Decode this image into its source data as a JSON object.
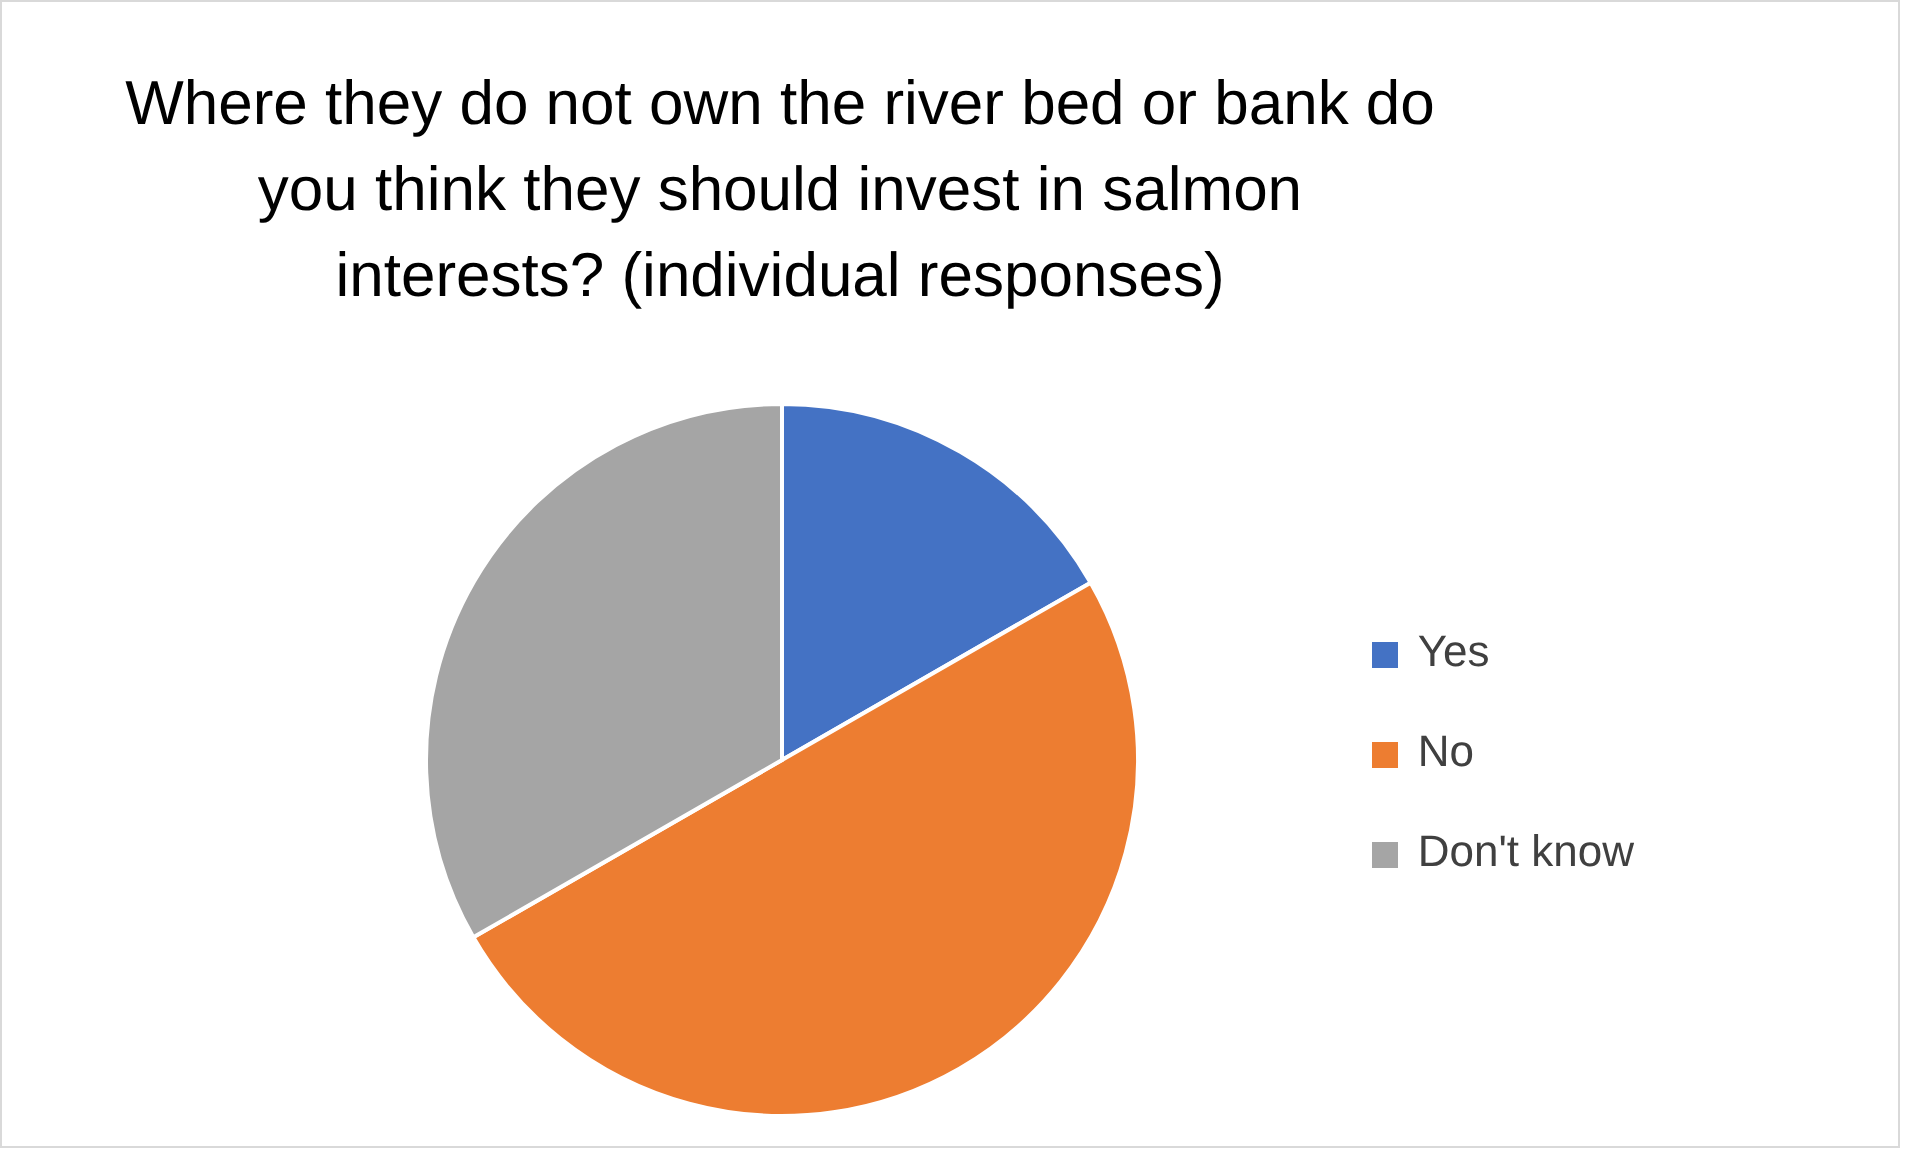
{
  "chart_data": {
    "type": "pie",
    "title": "Where they do not own the river bed or bank do you think they should invest in salmon interests? (individual responses)",
    "categories": [
      "Yes",
      "No",
      "Don't know"
    ],
    "values": [
      16.7,
      50,
      33.3
    ],
    "colors": [
      "#4472c4",
      "#ed7d31",
      "#a5a5a5"
    ],
    "legend": "right"
  }
}
